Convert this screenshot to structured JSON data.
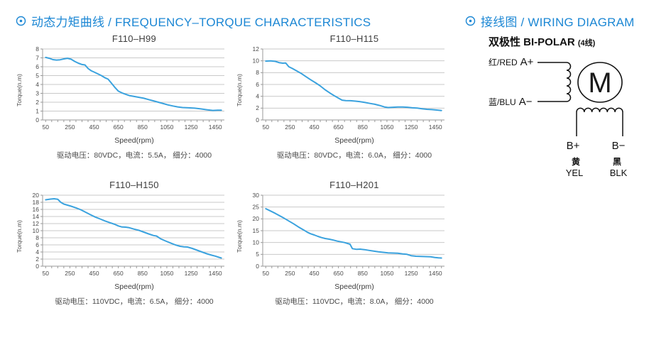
{
  "headers": {
    "charts_section": "动态力矩曲线 / FREQUENCY–TORQUE CHARACTERISTICS",
    "wiring_section": "接线图 / WIRING DIAGRAM"
  },
  "colors": {
    "header_blue": "#1c87d4",
    "line_blue": "#3aa2de",
    "grid_gray": "#c9c9c9",
    "axis_gray": "#999999",
    "wiring_black": "#111111"
  },
  "chart_data": [
    {
      "type": "line",
      "title": "F110–H99",
      "xlabel": "Speed(rpm)",
      "ylabel": "Torque(n.m)",
      "caption": "驱动电压：80VDC，电流：5.5A， 细分：4000",
      "ylim": [
        0,
        8
      ],
      "ystep": 1,
      "xlim": [
        25,
        1525
      ],
      "xtick_minor_step": 50,
      "xlabel_ticks": [
        50,
        250,
        450,
        650,
        850,
        1050,
        1250,
        1450
      ],
      "grid": "horizontal",
      "points": [
        [
          50,
          7.05
        ],
        [
          80,
          6.95
        ],
        [
          110,
          6.8
        ],
        [
          140,
          6.75
        ],
        [
          170,
          6.78
        ],
        [
          200,
          6.88
        ],
        [
          230,
          6.95
        ],
        [
          260,
          6.85
        ],
        [
          290,
          6.6
        ],
        [
          320,
          6.4
        ],
        [
          350,
          6.25
        ],
        [
          375,
          6.2
        ],
        [
          400,
          5.8
        ],
        [
          425,
          5.55
        ],
        [
          450,
          5.4
        ],
        [
          480,
          5.2
        ],
        [
          510,
          5.0
        ],
        [
          540,
          4.75
        ],
        [
          565,
          4.6
        ],
        [
          590,
          4.2
        ],
        [
          620,
          3.7
        ],
        [
          650,
          3.25
        ],
        [
          680,
          3.05
        ],
        [
          710,
          2.9
        ],
        [
          740,
          2.75
        ],
        [
          780,
          2.65
        ],
        [
          820,
          2.55
        ],
        [
          860,
          2.45
        ],
        [
          900,
          2.3
        ],
        [
          940,
          2.15
        ],
        [
          980,
          2.0
        ],
        [
          1020,
          1.85
        ],
        [
          1060,
          1.7
        ],
        [
          1100,
          1.58
        ],
        [
          1140,
          1.47
        ],
        [
          1180,
          1.4
        ],
        [
          1230,
          1.37
        ],
        [
          1280,
          1.33
        ],
        [
          1330,
          1.25
        ],
        [
          1380,
          1.15
        ],
        [
          1430,
          1.07
        ],
        [
          1470,
          1.1
        ],
        [
          1500,
          1.1
        ]
      ]
    },
    {
      "type": "line",
      "title": "F110–H115",
      "xlabel": "Speed(rpm)",
      "ylabel": "Torque(n.m)",
      "caption": "驱动电压：80VDC，电流：6.0A， 细分：4000",
      "ylim": [
        0,
        12
      ],
      "ystep": 2,
      "xlim": [
        25,
        1525
      ],
      "xtick_minor_step": 50,
      "xlabel_ticks": [
        50,
        250,
        450,
        650,
        850,
        1050,
        1250,
        1450
      ],
      "grid": "horizontal",
      "points": [
        [
          50,
          9.95
        ],
        [
          90,
          10.0
        ],
        [
          130,
          9.9
        ],
        [
          160,
          9.7
        ],
        [
          190,
          9.6
        ],
        [
          215,
          9.62
        ],
        [
          240,
          9.0
        ],
        [
          270,
          8.7
        ],
        [
          300,
          8.35
        ],
        [
          340,
          7.9
        ],
        [
          380,
          7.35
        ],
        [
          420,
          6.8
        ],
        [
          460,
          6.3
        ],
        [
          500,
          5.75
        ],
        [
          540,
          5.1
        ],
        [
          580,
          4.55
        ],
        [
          620,
          4.05
        ],
        [
          650,
          3.7
        ],
        [
          680,
          3.35
        ],
        [
          710,
          3.28
        ],
        [
          750,
          3.25
        ],
        [
          790,
          3.18
        ],
        [
          830,
          3.08
        ],
        [
          870,
          2.95
        ],
        [
          910,
          2.8
        ],
        [
          950,
          2.65
        ],
        [
          990,
          2.45
        ],
        [
          1030,
          2.2
        ],
        [
          1060,
          2.1
        ],
        [
          1100,
          2.15
        ],
        [
          1140,
          2.18
        ],
        [
          1180,
          2.2
        ],
        [
          1220,
          2.15
        ],
        [
          1260,
          2.05
        ],
        [
          1300,
          2.0
        ],
        [
          1340,
          1.9
        ],
        [
          1380,
          1.8
        ],
        [
          1420,
          1.75
        ],
        [
          1460,
          1.68
        ],
        [
          1500,
          1.6
        ]
      ]
    },
    {
      "type": "line",
      "title": "F110–H150",
      "xlabel": "Speed(rpm)",
      "ylabel": "Torque(n.m)",
      "caption": "驱动电压：110VDC，电流：6.5A， 细分：4000",
      "ylim": [
        0,
        20
      ],
      "ystep": 2,
      "xlim": [
        25,
        1525
      ],
      "xtick_minor_step": 50,
      "xlabel_ticks": [
        50,
        250,
        450,
        650,
        850,
        1050,
        1250,
        1450
      ],
      "grid": "horizontal",
      "points": [
        [
          50,
          18.7
        ],
        [
          90,
          18.9
        ],
        [
          120,
          19.0
        ],
        [
          150,
          18.85
        ],
        [
          175,
          18.0
        ],
        [
          200,
          17.5
        ],
        [
          230,
          17.2
        ],
        [
          260,
          16.9
        ],
        [
          300,
          16.45
        ],
        [
          340,
          15.9
        ],
        [
          380,
          15.2
        ],
        [
          420,
          14.5
        ],
        [
          460,
          13.85
        ],
        [
          500,
          13.3
        ],
        [
          540,
          12.75
        ],
        [
          580,
          12.25
        ],
        [
          620,
          11.8
        ],
        [
          650,
          11.35
        ],
        [
          680,
          11.05
        ],
        [
          710,
          11.0
        ],
        [
          740,
          10.85
        ],
        [
          780,
          10.45
        ],
        [
          820,
          10.1
        ],
        [
          860,
          9.6
        ],
        [
          900,
          9.1
        ],
        [
          940,
          8.65
        ],
        [
          965,
          8.5
        ],
        [
          1000,
          7.7
        ],
        [
          1040,
          7.1
        ],
        [
          1080,
          6.55
        ],
        [
          1120,
          6.0
        ],
        [
          1160,
          5.6
        ],
        [
          1190,
          5.45
        ],
        [
          1220,
          5.4
        ],
        [
          1260,
          5.0
        ],
        [
          1300,
          4.5
        ],
        [
          1340,
          4.0
        ],
        [
          1380,
          3.5
        ],
        [
          1420,
          3.1
        ],
        [
          1450,
          2.85
        ],
        [
          1480,
          2.5
        ],
        [
          1500,
          2.3
        ]
      ]
    },
    {
      "type": "line",
      "title": "F110–H201",
      "xlabel": "Speed(rpm)",
      "ylabel": "Torque(n.m)",
      "caption": "驱动电压：110VDC，电流：8.0A， 细分：4000",
      "ylim": [
        0,
        30
      ],
      "ystep": 5,
      "xlim": [
        25,
        1525
      ],
      "xtick_minor_step": 50,
      "xlabel_ticks": [
        50,
        250,
        450,
        650,
        850,
        1050,
        1250,
        1450
      ],
      "grid": "horizontal",
      "points": [
        [
          50,
          24.3
        ],
        [
          90,
          23.3
        ],
        [
          130,
          22.3
        ],
        [
          165,
          21.3
        ],
        [
          200,
          20.3
        ],
        [
          240,
          19.1
        ],
        [
          280,
          17.9
        ],
        [
          320,
          16.6
        ],
        [
          360,
          15.4
        ],
        [
          395,
          14.3
        ],
        [
          420,
          13.7
        ],
        [
          450,
          13.2
        ],
        [
          480,
          12.6
        ],
        [
          510,
          12.1
        ],
        [
          540,
          11.7
        ],
        [
          575,
          11.4
        ],
        [
          610,
          11.0
        ],
        [
          640,
          10.6
        ],
        [
          670,
          10.3
        ],
        [
          700,
          10.0
        ],
        [
          725,
          9.6
        ],
        [
          745,
          9.3
        ],
        [
          765,
          7.4
        ],
        [
          800,
          7.1
        ],
        [
          830,
          7.2
        ],
        [
          865,
          7.0
        ],
        [
          900,
          6.7
        ],
        [
          940,
          6.35
        ],
        [
          980,
          6.05
        ],
        [
          1020,
          5.85
        ],
        [
          1060,
          5.65
        ],
        [
          1100,
          5.55
        ],
        [
          1140,
          5.45
        ],
        [
          1180,
          5.2
        ],
        [
          1215,
          5.0
        ],
        [
          1250,
          4.45
        ],
        [
          1290,
          4.2
        ],
        [
          1330,
          4.1
        ],
        [
          1370,
          4.05
        ],
        [
          1410,
          3.95
        ],
        [
          1445,
          3.7
        ],
        [
          1475,
          3.5
        ],
        [
          1500,
          3.45
        ]
      ]
    }
  ],
  "wiring": {
    "subtitle": "双极性 BI-POLAR",
    "subtitle_suffix": "(4线)",
    "a_plus_wire": "红/RED",
    "a_plus_terminal": "A+",
    "a_minus_wire": "蓝/BLU",
    "a_minus_terminal": "A−",
    "motor_symbol": "M",
    "b_plus": "B+",
    "b_minus": "B−",
    "yellow_zh": "黄",
    "yellow_en": "YEL",
    "black_zh": "黑",
    "black_en": "BLK"
  }
}
